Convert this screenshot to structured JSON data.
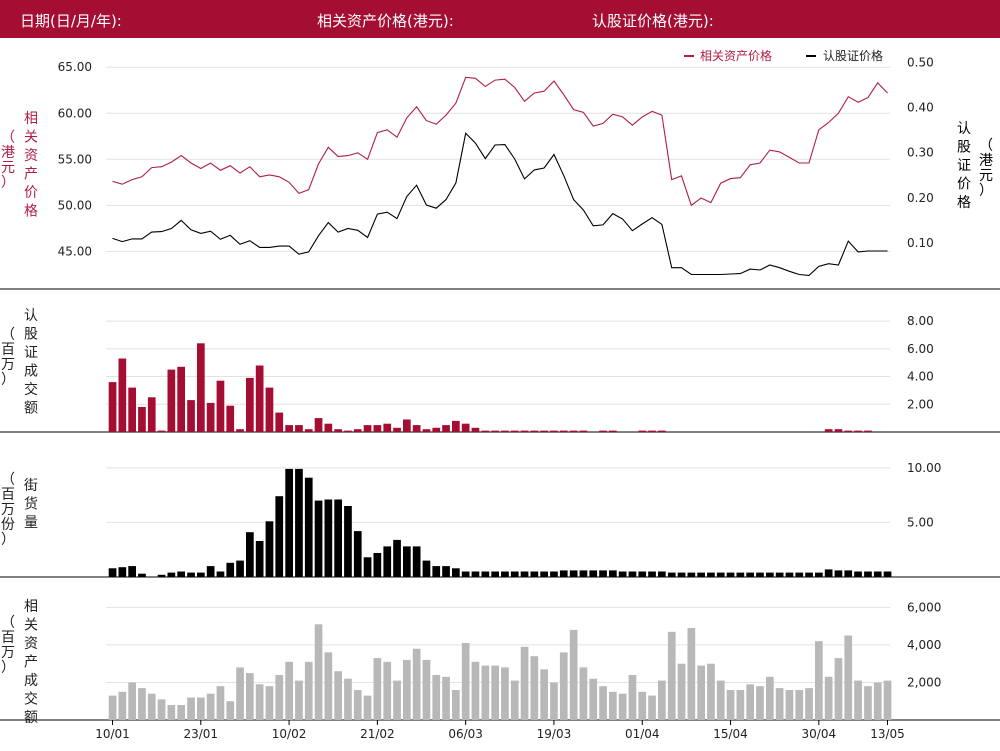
{
  "header": {
    "date_label": "日期(日/月/年):",
    "underlying_price_label": "相关资产价格(港元):",
    "warrant_price_label": "认股证价格(港元):"
  },
  "colors": {
    "accent": "#a50e33",
    "underlying_line": "#b01e45",
    "warrant_line": "#000000",
    "underlying_turnover_bar": "#b8b8b8"
  },
  "chart_data": [
    {
      "type": "line",
      "legend": {
        "position": "top-right",
        "entries": [
          "相关资产价格",
          "认股证价格"
        ]
      },
      "y_left": {
        "label_chars": [
          "相",
          "关",
          "资",
          "产",
          "价",
          "格"
        ],
        "unit_chars": [
          "（",
          "港",
          "元",
          "）"
        ],
        "ticks": [
          "45.00",
          "50.00",
          "55.00",
          "60.00",
          "65.00"
        ],
        "ylim": [
          42,
          66
        ]
      },
      "y_right": {
        "label_chars": [
          "认",
          "股",
          "证",
          "价",
          "格"
        ],
        "unit_chars": [
          "（",
          "港",
          "元",
          "）"
        ],
        "ticks": [
          "0.10",
          "0.20",
          "0.30",
          "0.40",
          "0.50"
        ],
        "ylim": [
          0.02,
          0.51
        ]
      },
      "series": [
        {
          "name": "相关资产价格",
          "axis": "left",
          "values": [
            52.6,
            52.3,
            52.8,
            53.1,
            54.1,
            54.2,
            54.7,
            55.4,
            54.6,
            54.0,
            54.6,
            53.8,
            54.3,
            53.5,
            54.2,
            53.1,
            53.3,
            53.1,
            52.5,
            51.3,
            51.7,
            54.5,
            56.3,
            55.3,
            55.4,
            55.7,
            55.0,
            57.9,
            58.2,
            57.4,
            59.5,
            60.7,
            59.2,
            58.8,
            59.8,
            61.1,
            63.9,
            63.8,
            62.9,
            63.6,
            63.7,
            62.8,
            61.3,
            62.2,
            62.4,
            63.5,
            62.0,
            60.4,
            60.1,
            58.6,
            58.9,
            59.9,
            59.6,
            58.7,
            59.6,
            60.2,
            59.8,
            52.8,
            53.2,
            50.0,
            50.8,
            50.3,
            52.4,
            52.9,
            53.0,
            54.4,
            54.6,
            56.0,
            55.8,
            55.2,
            54.6,
            54.6,
            58.2,
            59.0,
            60.0,
            61.8,
            61.2,
            61.7,
            63.3,
            62.2
          ]
        },
        {
          "name": "认股证价格",
          "axis": "right",
          "values": [
            0.11,
            0.103,
            0.109,
            0.109,
            0.124,
            0.125,
            0.132,
            0.15,
            0.129,
            0.121,
            0.126,
            0.108,
            0.117,
            0.097,
            0.105,
            0.09,
            0.09,
            0.093,
            0.093,
            0.075,
            0.08,
            0.116,
            0.145,
            0.124,
            0.132,
            0.128,
            0.112,
            0.164,
            0.168,
            0.154,
            0.203,
            0.228,
            0.184,
            0.177,
            0.196,
            0.233,
            0.343,
            0.321,
            0.287,
            0.317,
            0.318,
            0.286,
            0.242,
            0.262,
            0.266,
            0.296,
            0.249,
            0.196,
            0.173,
            0.138,
            0.14,
            0.165,
            0.153,
            0.127,
            0.142,
            0.156,
            0.141,
            0.045,
            0.045,
            0.03,
            0.03,
            0.03,
            0.03,
            0.031,
            0.032,
            0.042,
            0.04,
            0.051,
            0.045,
            0.037,
            0.03,
            0.028,
            0.048,
            0.054,
            0.051,
            0.104,
            0.08,
            0.082,
            0.082,
            0.082
          ]
        }
      ]
    },
    {
      "type": "bar",
      "y_label_chars": [
        "认",
        "股",
        "证",
        "成",
        "交",
        "额"
      ],
      "unit_chars": [
        "（",
        "百",
        "万",
        "）"
      ],
      "ticks": [
        "2.00",
        "4.00",
        "6.00",
        "8.00"
      ],
      "ylim": [
        0,
        8.8
      ],
      "values": [
        3.6,
        5.3,
        3.2,
        1.8,
        2.5,
        0.1,
        4.5,
        4.7,
        2.3,
        6.4,
        2.1,
        3.7,
        1.9,
        0.2,
        3.9,
        4.8,
        3.2,
        1.4,
        0.5,
        0.5,
        0.2,
        1.0,
        0.6,
        0.2,
        0.1,
        0.2,
        0.5,
        0.5,
        0.6,
        0.3,
        0.9,
        0.5,
        0.2,
        0.3,
        0.5,
        0.8,
        0.6,
        0.3,
        0.1,
        0.1,
        0.1,
        0.1,
        0.1,
        0.1,
        0.1,
        0.1,
        0.1,
        0.1,
        0.1,
        0.0,
        0.1,
        0.1,
        0.0,
        0.0,
        0.1,
        0.1,
        0.1,
        0.0,
        0.0,
        0.0,
        0.0,
        0.0,
        0.0,
        0.0,
        0.0,
        0.0,
        0.0,
        0.0,
        0.0,
        0.0,
        0.0,
        0.0,
        0.0,
        0.2,
        0.2,
        0.1,
        0.1,
        0.1,
        0.0,
        0.0
      ]
    },
    {
      "type": "bar",
      "y_label_chars": [
        "街",
        "货",
        "量"
      ],
      "unit_chars": [
        "（",
        "百",
        "万",
        "份",
        "）"
      ],
      "ticks": [
        "5.00",
        "10.00"
      ],
      "ylim": [
        0,
        10.9
      ],
      "values": [
        0.8,
        0.9,
        1.0,
        0.3,
        0.0,
        0.2,
        0.4,
        0.5,
        0.4,
        0.4,
        1.0,
        0.5,
        1.3,
        1.5,
        4.1,
        3.3,
        5.1,
        7.4,
        9.9,
        9.9,
        9.1,
        7.0,
        7.1,
        7.1,
        6.5,
        4.2,
        1.8,
        2.2,
        2.8,
        3.4,
        2.8,
        2.8,
        1.5,
        1.0,
        1.0,
        0.8,
        0.5,
        0.5,
        0.5,
        0.5,
        0.5,
        0.5,
        0.5,
        0.5,
        0.5,
        0.5,
        0.6,
        0.6,
        0.6,
        0.6,
        0.6,
        0.6,
        0.5,
        0.5,
        0.5,
        0.5,
        0.5,
        0.4,
        0.4,
        0.4,
        0.4,
        0.4,
        0.4,
        0.4,
        0.4,
        0.4,
        0.4,
        0.4,
        0.4,
        0.4,
        0.4,
        0.4,
        0.4,
        0.7,
        0.6,
        0.6,
        0.5,
        0.5,
        0.5,
        0.5
      ]
    },
    {
      "type": "bar",
      "y_label_chars": [
        "相",
        "关",
        "资",
        "产",
        "成",
        "交",
        "额"
      ],
      "unit_chars": [
        "（",
        "百",
        "万",
        "）"
      ],
      "ticks": [
        "2,000",
        "4,000",
        "6,000"
      ],
      "ylim": [
        0,
        6500
      ],
      "values": [
        1300,
        1500,
        2000,
        1700,
        1400,
        1100,
        800,
        800,
        1200,
        1200,
        1400,
        1800,
        1000,
        2800,
        2500,
        1900,
        1800,
        2400,
        3100,
        2100,
        3100,
        5100,
        3600,
        2600,
        2200,
        1600,
        1300,
        3300,
        3100,
        2100,
        3200,
        3800,
        3200,
        2400,
        2300,
        1600,
        4100,
        3100,
        2900,
        2900,
        2800,
        2100,
        3900,
        3400,
        2700,
        2000,
        3600,
        4800,
        2800,
        2200,
        1800,
        1500,
        1400,
        2400,
        1500,
        1300,
        2100,
        4700,
        3000,
        4900,
        2900,
        3000,
        2100,
        1600,
        1600,
        1900,
        1800,
        2300,
        1700,
        1600,
        1600,
        1700,
        4200,
        2300,
        3300,
        4500,
        2100,
        1800,
        2000,
        2100
      ]
    }
  ],
  "x_axis": {
    "tick_labels": [
      "10/01",
      "23/01",
      "10/02",
      "21/02",
      "06/03",
      "19/03",
      "01/04",
      "15/04",
      "30/04",
      "13/05"
    ]
  }
}
